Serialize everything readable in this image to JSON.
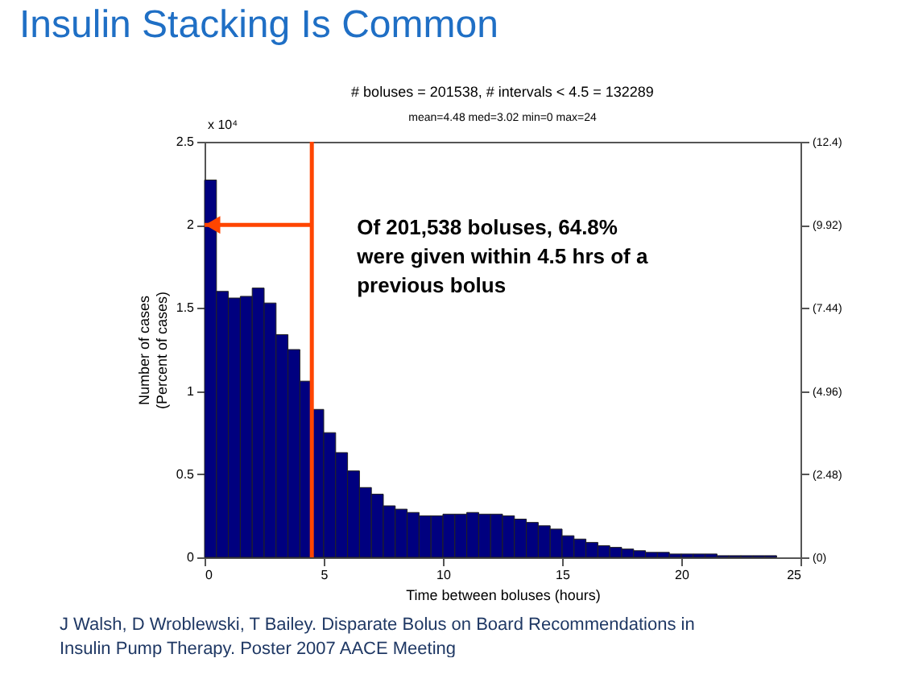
{
  "chart_data": {
    "type": "histogram",
    "title": "Insulin Stacking Is Common",
    "subtitle": "# boluses = 201538, # intervals < 4.5 = 132289",
    "bins": [
      0,
      0.5,
      1,
      1.5,
      2,
      2.5,
      3,
      3.5,
      4,
      4.5,
      5,
      5.5,
      6,
      6.5,
      7,
      7.5,
      8,
      8.5,
      9,
      9.5,
      10,
      10.5,
      11,
      11.5,
      12,
      12.5,
      13,
      13.5,
      14,
      14.5,
      15,
      15.5,
      16,
      16.5,
      17,
      17.5,
      18,
      18.5,
      19,
      19.5,
      20,
      20.5,
      21,
      21.5,
      22,
      22.5,
      23,
      23.5,
      24
    ],
    "values": [
      2.27,
      1.6,
      1.56,
      1.57,
      1.62,
      1.53,
      1.34,
      1.25,
      1.06,
      0.89,
      0.75,
      0.63,
      0.52,
      0.42,
      0.38,
      0.31,
      0.29,
      0.27,
      0.25,
      0.25,
      0.26,
      0.26,
      0.27,
      0.26,
      0.26,
      0.25,
      0.23,
      0.21,
      0.19,
      0.17,
      0.13,
      0.11,
      0.09,
      0.07,
      0.06,
      0.05,
      0.04,
      0.03,
      0.03,
      0.02,
      0.02,
      0.02,
      0.02,
      0.01,
      0.01,
      0.01,
      0.01,
      0.01
    ],
    "color": "#00007f",
    "xlabel": "Time between boluses (hours)",
    "ylabel": "Number of cases\n(Percent of cases)",
    "xlim": [
      0,
      25
    ],
    "xticks": [
      0,
      5,
      10,
      15,
      20,
      25
    ],
    "ylim": [
      0,
      2.5
    ],
    "yticks": [
      {
        "value": 0,
        "label": "0"
      },
      0.5,
      {
        "value": 1,
        "label": "1"
      },
      1.5,
      {
        "value": 2,
        "label": "2"
      },
      2.5
    ],
    "y2lim": [
      0,
      12.4
    ],
    "y2ticks": [
      {
        "value": 0,
        "label": "(0)"
      },
      {
        "value": 2.48,
        "label": "(2.48)"
      },
      {
        "value": 4.96,
        "label": "(4.96)"
      },
      {
        "value": 7.44,
        "label": "(7.44)"
      },
      {
        "value": 9.92,
        "label": "(9.92)"
      },
      {
        "value": 12.4,
        "label": "(12.4)"
      }
    ],
    "ref_lines": [
      {
        "axis": "x",
        "value": 4.5,
        "color": "#ff4500"
      }
    ],
    "annotations": [
      "x 10⁴",
      "mean=4.48 med=3.02 min=0 max=24",
      {
        "text": "Of 201,538 boluses, 64.8%\nwere given within 4.5 hrs of a\nprevious bolus",
        "x": 4.5,
        "y": 2
      },
      "J Walsh, D Wroblewski, T Bailey. Disparate Bolus on Board Recommendations in\nInsulin Pump Therapy. Poster 2007 AACE Meeting"
    ],
    "grid": false
  }
}
